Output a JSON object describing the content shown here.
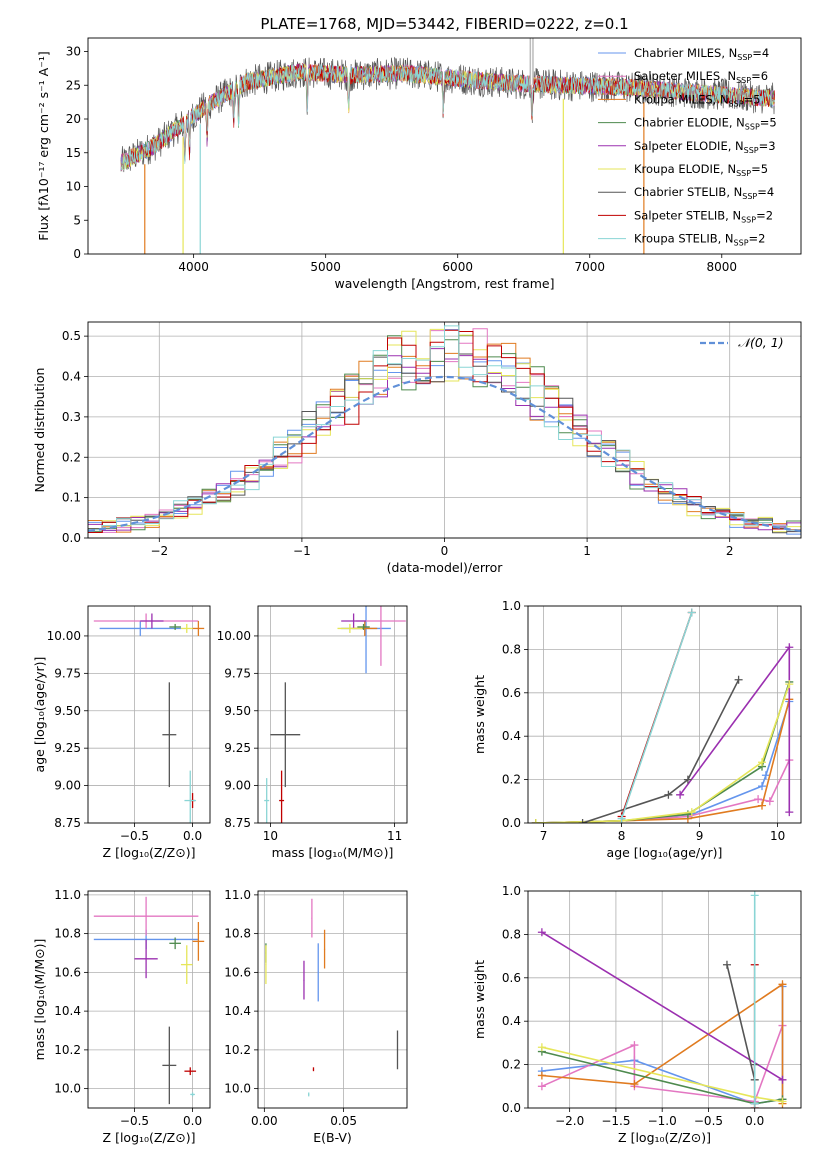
{
  "colors": [
    "#6495ED",
    "#E377C2",
    "#E07B20",
    "#4E8A4E",
    "#9B30B0",
    "#E6E65A",
    "#555555",
    "#C00000",
    "#8AD5D5"
  ],
  "chart_data": [
    {
      "id": "spectrum",
      "type": "line",
      "title": "PLATE=1768, MJD=53442, FIBERID=0222, z=0.1",
      "xlabel": "wavelength [Angstrom, rest frame]",
      "ylabel": "Flux [fλ10⁻¹⁷ erg cm⁻² s⁻¹ A⁻¹]",
      "xlim": [
        3200,
        8600
      ],
      "ylim": [
        0,
        32
      ],
      "xticks": [
        "4000",
        "5000",
        "6000",
        "7000",
        "8000"
      ],
      "xtick_values": [
        4000,
        5000,
        6000,
        7000,
        8000
      ],
      "yticks": [
        "0",
        "5",
        "10",
        "15",
        "20",
        "25",
        "30"
      ],
      "ytick_values": [
        0,
        5,
        10,
        15,
        20,
        25,
        30
      ],
      "grid": false,
      "legend_position": "upper-right",
      "data_x_start": 3450,
      "data_x_end": 8400,
      "continuum": [
        [
          3450,
          13.5
        ],
        [
          3700,
          16
        ],
        [
          3900,
          19
        ],
        [
          4100,
          22
        ],
        [
          4400,
          25.5
        ],
        [
          4800,
          27
        ],
        [
          5200,
          26.5
        ],
        [
          5600,
          26.8
        ],
        [
          6000,
          26
        ],
        [
          6400,
          25.3
        ],
        [
          6800,
          25
        ],
        [
          7200,
          24.8
        ],
        [
          7600,
          24.2
        ],
        [
          8000,
          23.6
        ],
        [
          8400,
          23
        ]
      ],
      "absorption_lines": [
        3934,
        3969,
        4102,
        4304,
        4340,
        4861,
        5175,
        5890,
        6563
      ],
      "series": [
        {
          "name": "Chabrier MILES, N",
          "sub": "SSP",
          "tail": "=4"
        },
        {
          "name": "Salpeter MILES, N",
          "sub": "SSP",
          "tail": "=6"
        },
        {
          "name": "Kroupa MILES, N",
          "sub": "SSP",
          "tail": "=5"
        },
        {
          "name": "Chabrier ELODIE, N",
          "sub": "SSP",
          "tail": "=5"
        },
        {
          "name": "Salpeter ELODIE, N",
          "sub": "SSP",
          "tail": "=3"
        },
        {
          "name": "Kroupa ELODIE, N",
          "sub": "SSP",
          "tail": "=5"
        },
        {
          "name": "Chabrier STELIB, N",
          "sub": "SSP",
          "tail": "=4"
        },
        {
          "name": "Salpeter STELIB, N",
          "sub": "SSP",
          "tail": "=2"
        },
        {
          "name": "Kroupa STELIB, N",
          "sub": "SSP",
          "tail": "=2"
        }
      ]
    },
    {
      "id": "residuals",
      "type": "line",
      "xlabel": "(data-model)/error",
      "ylabel": "Normed distribution",
      "xlim": [
        -2.5,
        2.5
      ],
      "ylim": [
        0,
        0.535
      ],
      "xticks": [
        "−2",
        "−1",
        "0",
        "1",
        "2"
      ],
      "xtick_values": [
        -2,
        -1,
        0,
        1,
        2
      ],
      "yticks": [
        "0.0",
        "0.1",
        "0.2",
        "0.3",
        "0.4",
        "0.5"
      ],
      "ytick_values": [
        0,
        0.1,
        0.2,
        0.3,
        0.4,
        0.5
      ],
      "grid": true,
      "legend_position": "upper-right",
      "gaussian_label": "𝒩(0, 1)",
      "bins": 50
    },
    {
      "id": "age_vs_z",
      "type": "scatter",
      "xlabel": "Z [log₁₀(Z/Z⊙)]",
      "ylabel": "age  [log₁₀(age/yr)]",
      "xlim": [
        -0.9,
        0.15
      ],
      "ylim": [
        8.75,
        10.2
      ],
      "xticks": [
        "−0.5",
        "0.0"
      ],
      "xtick_values": [
        -0.5,
        0
      ],
      "yticks": [
        "8.75",
        "9.00",
        "9.25",
        "9.50",
        "9.75",
        "10.00"
      ],
      "ytick_values": [
        8.75,
        9.0,
        9.25,
        9.5,
        9.75,
        10.0
      ],
      "grid": true,
      "points": [
        {
          "x": -0.45,
          "y": 10.05,
          "xerr": 0.35,
          "yerr": 0.05
        },
        {
          "x": -0.4,
          "y": 10.1,
          "xerr": 0.45,
          "yerr": 0.05
        },
        {
          "x": 0.05,
          "y": 10.05,
          "xerr": 0.05,
          "yerr": 0.05
        },
        {
          "x": -0.15,
          "y": 10.06,
          "xerr": 0.05,
          "yerr": 0.02
        },
        {
          "x": -0.35,
          "y": 10.1,
          "xerr": 0.1,
          "yerr": 0.05
        },
        {
          "x": -0.05,
          "y": 10.05,
          "xerr": 0.05,
          "yerr": 0.03
        },
        {
          "x": -0.2,
          "y": 9.34,
          "xerr": 0.06,
          "yerr": 0.35
        },
        {
          "x": 0.0,
          "y": 8.9,
          "xerr": 0.02,
          "yerr": 0.05
        },
        {
          "x": -0.02,
          "y": 8.9,
          "xerr": 0.05,
          "yerr": 0.2
        }
      ]
    },
    {
      "id": "age_vs_mass",
      "type": "scatter",
      "xlabel": "mass [log₁₀(M/M⊙)]",
      "ylabel": "",
      "xlim": [
        9.9,
        11.1
      ],
      "ylim": [
        8.75,
        10.2
      ],
      "xticks": [
        "10",
        "11"
      ],
      "xtick_values": [
        10,
        11
      ],
      "yticks": [
        "8.75",
        "9.00",
        "9.25",
        "9.50",
        "9.75",
        "10.00"
      ],
      "ytick_values": [
        8.75,
        9.0,
        9.25,
        9.5,
        9.75,
        10.0
      ],
      "grid": true,
      "points": [
        {
          "x": 10.77,
          "y": 10.05,
          "xerr": 0.2,
          "yerr": 0.3
        },
        {
          "x": 10.89,
          "y": 10.1,
          "xerr": 0.2,
          "yerr": 0.3
        },
        {
          "x": 10.76,
          "y": 10.05,
          "xerr": 0.1,
          "yerr": 0.05
        },
        {
          "x": 10.75,
          "y": 10.06,
          "xerr": 0.05,
          "yerr": 0.02
        },
        {
          "x": 10.67,
          "y": 10.1,
          "xerr": 0.1,
          "yerr": 0.05
        },
        {
          "x": 10.64,
          "y": 10.05,
          "xerr": 0.1,
          "yerr": 0.03
        },
        {
          "x": 10.12,
          "y": 9.34,
          "xerr": 0.12,
          "yerr": 0.35
        },
        {
          "x": 10.09,
          "y": 8.9,
          "xerr": 0.02,
          "yerr": 0.2
        },
        {
          "x": 9.97,
          "y": 8.9,
          "xerr": 0.02,
          "yerr": 0.15
        }
      ]
    },
    {
      "id": "weight_vs_age",
      "type": "line",
      "xlabel": "age  [log₁₀(age/yr)]",
      "ylabel": "mass weight",
      "xlim": [
        6.8,
        10.3
      ],
      "ylim": [
        0,
        1
      ],
      "xticks": [
        "7",
        "8",
        "9",
        "10"
      ],
      "xtick_values": [
        7,
        8,
        9,
        10
      ],
      "yticks": [
        "0.0",
        "0.2",
        "0.4",
        "0.6",
        "0.8",
        "1.0"
      ],
      "ytick_values": [
        0,
        0.2,
        0.4,
        0.6,
        0.8,
        1.0
      ],
      "grid": true,
      "series": [
        {
          "x": [
            6.9,
            8.0,
            8.9,
            9.8,
            9.85,
            10.15
          ],
          "y": [
            0,
            0.01,
            0.04,
            0.17,
            0.22,
            0.56
          ]
        },
        {
          "x": [
            6.9,
            8.0,
            8.85,
            9.75,
            9.9,
            10.15
          ],
          "y": [
            0,
            0.01,
            0.03,
            0.11,
            0.1,
            0.29
          ]
        },
        {
          "x": [
            6.9,
            8.0,
            8.85,
            9.8,
            10.15
          ],
          "y": [
            0,
            0.01,
            0.02,
            0.08,
            0.57
          ]
        },
        {
          "x": [
            6.9,
            8.0,
            8.85,
            9.8,
            10.15
          ],
          "y": [
            0,
            0.01,
            0.04,
            0.26,
            0.65
          ]
        },
        {
          "x": [
            8.75,
            10.15,
            10.15
          ],
          "y": [
            0.13,
            0.81,
            0.05
          ]
        },
        {
          "x": [
            6.9,
            8.0,
            8.9,
            9.8,
            10.15
          ],
          "y": [
            0,
            0.01,
            0.05,
            0.28,
            0.64
          ]
        },
        {
          "x": [
            7.5,
            8.6,
            8.85,
            9.5
          ],
          "y": [
            0,
            0.13,
            0.2,
            0.66
          ]
        },
        {
          "x": [
            8.0,
            8.9
          ],
          "y": [
            0.03,
            0.97
          ]
        },
        {
          "x": [
            8.0,
            8.9
          ],
          "y": [
            0.02,
            0.97
          ]
        }
      ]
    },
    {
      "id": "mass_vs_z",
      "type": "scatter",
      "xlabel": "Z [log₁₀(Z/Z⊙)]",
      "ylabel": "mass [log₁₀(M/M⊙)]",
      "xlim": [
        -0.9,
        0.15
      ],
      "ylim": [
        9.9,
        11.02
      ],
      "xticks": [
        "−0.5",
        "0.0"
      ],
      "xtick_values": [
        -0.5,
        0
      ],
      "yticks": [
        "10.0",
        "10.2",
        "10.4",
        "10.6",
        "10.8",
        "11.0"
      ],
      "ytick_values": [
        10.0,
        10.2,
        10.4,
        10.6,
        10.8,
        11.0
      ],
      "grid": true,
      "points": [
        {
          "x": -0.4,
          "y": 10.77,
          "xerr": 0.45,
          "yerr": 0.05
        },
        {
          "x": -0.4,
          "y": 10.89,
          "xerr": 0.45,
          "yerr": 0.1
        },
        {
          "x": 0.05,
          "y": 10.76,
          "xerr": 0.05,
          "yerr": 0.1
        },
        {
          "x": -0.15,
          "y": 10.75,
          "xerr": 0.05,
          "yerr": 0.03
        },
        {
          "x": -0.4,
          "y": 10.67,
          "xerr": 0.1,
          "yerr": 0.1
        },
        {
          "x": -0.05,
          "y": 10.64,
          "xerr": 0.05,
          "yerr": 0.1
        },
        {
          "x": -0.2,
          "y": 10.12,
          "xerr": 0.06,
          "yerr": 0.2
        },
        {
          "x": -0.02,
          "y": 10.09,
          "xerr": 0.05,
          "yerr": 0.02
        },
        {
          "x": 0.0,
          "y": 9.97,
          "xerr": 0.02,
          "yerr": 0.01
        }
      ]
    },
    {
      "id": "mass_vs_ebv",
      "type": "scatter",
      "xlabel": "E(B-V)",
      "ylabel": "",
      "xlim": [
        -0.004,
        0.09
      ],
      "ylim": [
        9.9,
        11.02
      ],
      "xticks": [
        "0.00",
        "0.05"
      ],
      "xtick_values": [
        0,
        0.05
      ],
      "yticks": [
        "10.0",
        "10.2",
        "10.4",
        "10.6",
        "10.8",
        "11.0"
      ],
      "ytick_values": [
        10.0,
        10.2,
        10.4,
        10.6,
        10.8,
        11.0
      ],
      "grid": true,
      "points": [
        {
          "x": 0.034,
          "y": 10.6,
          "xerr": 0,
          "yerr": 0.15
        },
        {
          "x": 0.03,
          "y": 10.88,
          "xerr": 0,
          "yerr": 0.1
        },
        {
          "x": 0.038,
          "y": 10.72,
          "xerr": 0,
          "yerr": 0.1
        },
        {
          "x": 0.001,
          "y": 10.7,
          "xerr": 0,
          "yerr": 0.05
        },
        {
          "x": 0.025,
          "y": 10.56,
          "xerr": 0,
          "yerr": 0.1
        },
        {
          "x": 0.001,
          "y": 10.64,
          "xerr": 0,
          "yerr": 0.1
        },
        {
          "x": 0.084,
          "y": 10.2,
          "xerr": 0,
          "yerr": 0.1
        },
        {
          "x": 0.031,
          "y": 10.1,
          "xerr": 0,
          "yerr": 0.01
        },
        {
          "x": 0.028,
          "y": 9.97,
          "xerr": 0,
          "yerr": 0.01
        }
      ]
    },
    {
      "id": "weight_vs_z",
      "type": "line",
      "xlabel": "Z [log₁₀(Z/Z⊙)]",
      "ylabel": "mass weight",
      "xlim": [
        -2.45,
        0.5
      ],
      "ylim": [
        0,
        1
      ],
      "xticks": [
        "−2.0",
        "−1.5",
        "−1.0",
        "−0.5",
        "0.0"
      ],
      "xtick_values": [
        -2.0,
        -1.5,
        -1.0,
        -0.5,
        0
      ],
      "yticks": [
        "0.0",
        "0.2",
        "0.4",
        "0.6",
        "0.8",
        "1.0"
      ],
      "ytick_values": [
        0,
        0.2,
        0.4,
        0.6,
        0.8,
        1.0
      ],
      "grid": true,
      "series": [
        {
          "x": [
            -2.3,
            -1.3,
            0.0,
            0.3,
            0.3
          ],
          "y": [
            0.17,
            0.22,
            0.02,
            0.04,
            0.56
          ]
        },
        {
          "x": [
            -2.3,
            -1.3,
            -1.3,
            0.0,
            0.3
          ],
          "y": [
            0.1,
            0.29,
            0.1,
            0.03,
            0.38
          ]
        },
        {
          "x": [
            -2.3,
            -1.3,
            0.3,
            0.3
          ],
          "y": [
            0.15,
            0.11,
            0.57,
            0.02
          ]
        },
        {
          "x": [
            -2.3,
            0.0,
            0.3
          ],
          "y": [
            0.26,
            0.02,
            0.04
          ]
        },
        {
          "x": [
            -2.3,
            0.3
          ],
          "y": [
            0.81,
            0.13
          ]
        },
        {
          "x": [
            -2.3,
            0.0,
            0.3
          ],
          "y": [
            0.28,
            0.05,
            0.03
          ]
        },
        {
          "x": [
            -0.3,
            0.0,
            0.0
          ],
          "y": [
            0.66,
            0.13,
            0.2
          ]
        },
        {
          "x": [
            0.0,
            0.0
          ],
          "y": [
            0.0,
            0.66
          ]
        },
        {
          "x": [
            0.0,
            0.0
          ],
          "y": [
            0.02,
            0.98
          ]
        }
      ]
    }
  ]
}
